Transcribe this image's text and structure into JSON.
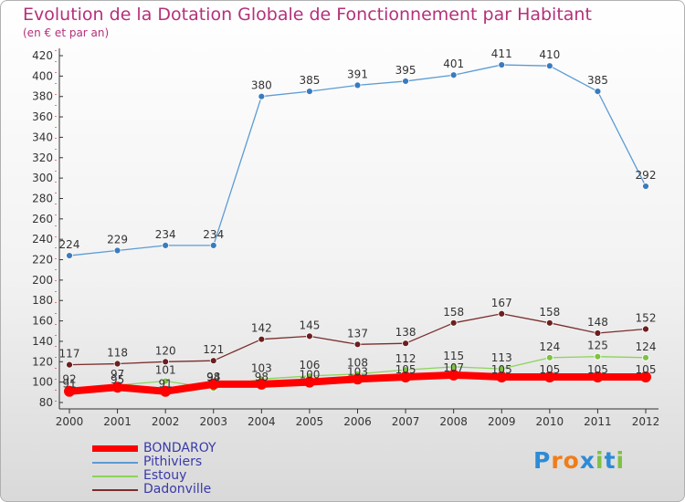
{
  "title": "Evolution de la Dotation Globale de Fonctionnement par Habitant",
  "subtitle": "(en € et par an)",
  "logo": {
    "text": "Proxiti",
    "letters": [
      "P",
      "r",
      "o",
      "x",
      "i",
      "t",
      "i"
    ],
    "colors": [
      "#2d8bd6",
      "#f07d1a",
      "#f07d1a",
      "#2d8bd6",
      "#7dc242",
      "#2d8bd6",
      "#7dc242"
    ]
  },
  "chart_data": {
    "type": "line",
    "categories": [
      "2000",
      "2001",
      "2002",
      "2003",
      "2004",
      "2005",
      "2006",
      "2007",
      "2008",
      "2009",
      "2010",
      "2011",
      "2012"
    ],
    "ylim": [
      80,
      420
    ],
    "yticks": [
      80,
      100,
      120,
      140,
      160,
      180,
      200,
      220,
      240,
      260,
      280,
      300,
      320,
      340,
      360,
      380,
      400,
      420
    ],
    "grid": false,
    "legend_position": "bottom-left",
    "series": [
      {
        "name": "Pithiviers",
        "color": "#5b9bd5",
        "marker": "#3a7bbf",
        "values": [
          224,
          229,
          234,
          234,
          380,
          385,
          391,
          395,
          401,
          411,
          410,
          385,
          292
        ],
        "labels": [
          "224",
          "229",
          "234",
          "234",
          "380",
          "385",
          "391",
          "395",
          "401",
          "411",
          "410",
          "385",
          "292"
        ]
      },
      {
        "name": "Dadonville",
        "color": "#7b2d2d",
        "marker": "#6b1f1f",
        "values": [
          117,
          118,
          120,
          121,
          142,
          145,
          137,
          138,
          158,
          167,
          158,
          148,
          152
        ],
        "labels": [
          "117",
          "118",
          "120",
          "121",
          "142",
          "145",
          "137",
          "138",
          "158",
          "167",
          "158",
          "148",
          "152"
        ]
      },
      {
        "name": "Estouy",
        "color": "#8bd45a",
        "marker": "#7dc242",
        "values": [
          92,
          97,
          101,
          94,
          103,
          106,
          108,
          112,
          115,
          113,
          124,
          125,
          124
        ],
        "labels": [
          "92",
          "97",
          "101",
          "94",
          "103",
          "106",
          "108",
          "112",
          "115",
          "113",
          "124",
          "125",
          "124"
        ]
      },
      {
        "name": "BONDAROY",
        "color": "#ff0000",
        "marker": "#ff0000",
        "values": [
          91,
          95,
          91,
          98,
          98,
          100,
          103,
          105,
          107,
          105,
          105,
          105,
          105
        ],
        "labels": [
          "91",
          "95",
          "91",
          "98",
          "98",
          "100",
          "103",
          "105",
          "107",
          "105",
          "105",
          "105",
          "105"
        ]
      }
    ],
    "legend_order": [
      "BONDAROY",
      "Pithiviers",
      "Estouy",
      "Dadonville"
    ]
  }
}
